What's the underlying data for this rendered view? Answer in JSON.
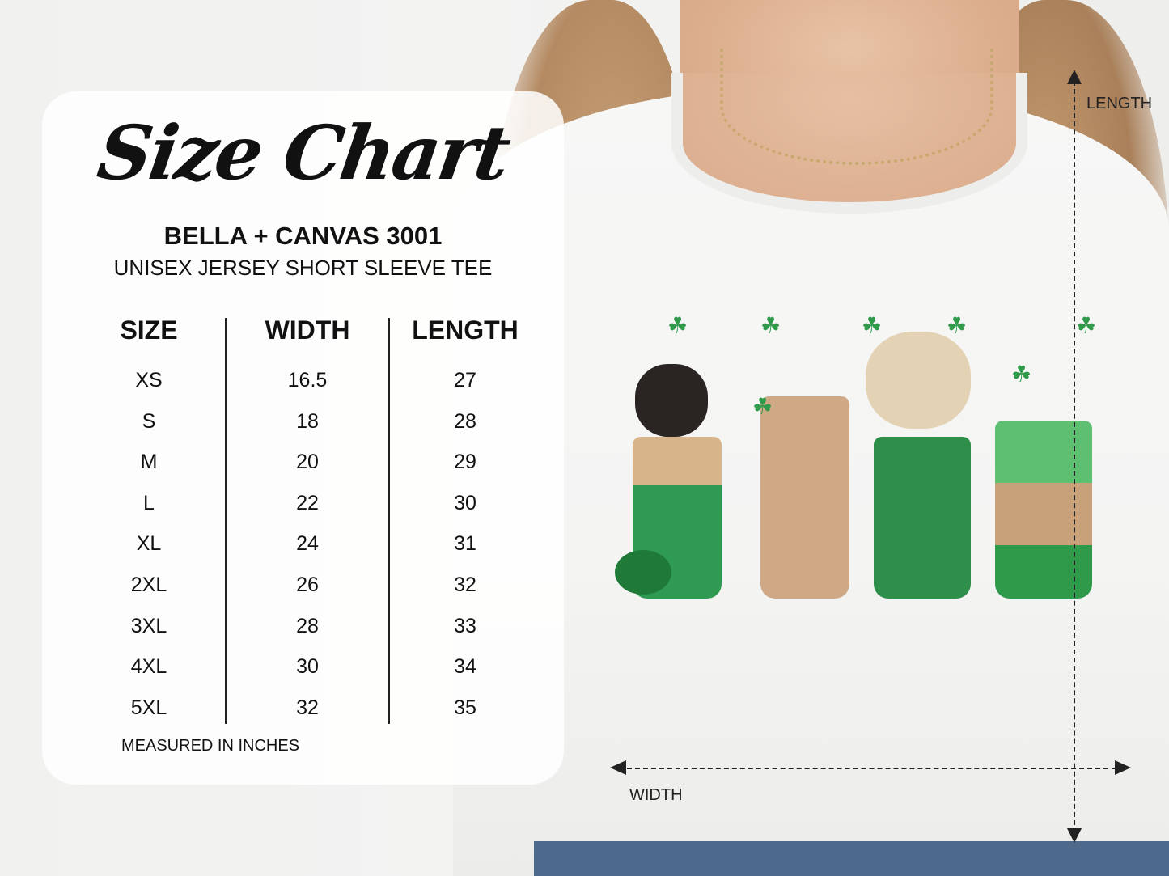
{
  "title": "Size Chart",
  "brand": "BELLA + CANVAS 3001",
  "product": "UNISEX JERSEY SHORT SLEEVE TEE",
  "headers": [
    "SIZE",
    "WIDTH",
    "LENGTH"
  ],
  "rows": [
    {
      "size": "XS",
      "width": "16.5",
      "length": "27"
    },
    {
      "size": "S",
      "width": "18",
      "length": "28"
    },
    {
      "size": "M",
      "width": "20",
      "length": "29"
    },
    {
      "size": "L",
      "width": "22",
      "length": "30"
    },
    {
      "size": "XL",
      "width": "24",
      "length": "31"
    },
    {
      "size": "2XL",
      "width": "26",
      "length": "32"
    },
    {
      "size": "3XL",
      "width": "28",
      "length": "33"
    },
    {
      "size": "4XL",
      "width": "30",
      "length": "34"
    },
    {
      "size": "5XL",
      "width": "32",
      "length": "35"
    }
  ],
  "footer": "MEASURED IN INCHES",
  "measurements": {
    "length_label": "LENGTH",
    "width_label": "WIDTH"
  },
  "colors": {
    "shamrock": "#2e9a4a",
    "text": "#111111"
  }
}
